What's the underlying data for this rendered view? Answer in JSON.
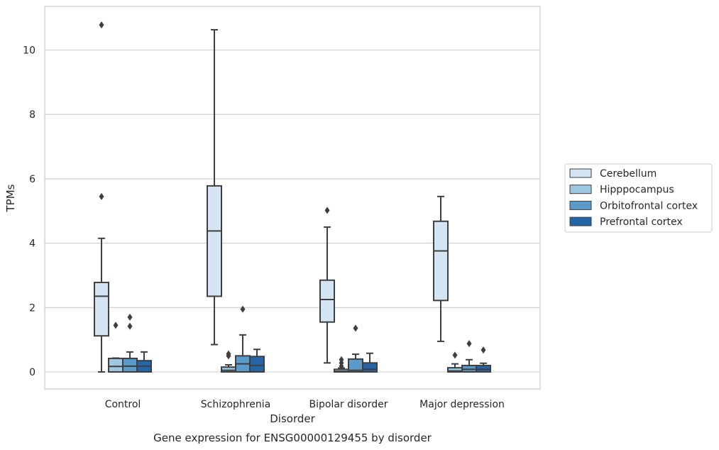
{
  "chart_data": {
    "type": "box",
    "caption": "Gene expression for ENSG00000129455 by disorder",
    "xlabel": "Disorder",
    "ylabel": "TPMs",
    "ylim": [
      -0.5,
      11.35
    ],
    "yticks": [
      0,
      2,
      4,
      6,
      8,
      10
    ],
    "grid": "horizontal",
    "legend_position": "right",
    "categories": [
      "Control",
      "Schizophrenia",
      "Bipolar disorder",
      "Major depression"
    ],
    "series": [
      {
        "name": "Cerebellum",
        "color": "#d6e5f3",
        "boxes": [
          {
            "whislo": 0.0,
            "q1": 1.12,
            "med": 2.35,
            "q3": 2.78,
            "whishi": 4.15,
            "fliers": [
              5.45,
              10.78
            ]
          },
          {
            "whislo": 0.85,
            "q1": 2.35,
            "med": 4.38,
            "q3": 5.78,
            "whishi": 10.63,
            "fliers": []
          },
          {
            "whislo": 0.28,
            "q1": 1.55,
            "med": 2.25,
            "q3": 2.85,
            "whishi": 4.5,
            "fliers": [
              5.02
            ]
          },
          {
            "whislo": 0.95,
            "q1": 2.22,
            "med": 3.76,
            "q3": 4.68,
            "whishi": 5.45,
            "fliers": []
          }
        ]
      },
      {
        "name": "Hipppocampus",
        "color": "#9dc6e0",
        "boxes": [
          {
            "whislo": 0.0,
            "q1": 0.0,
            "med": 0.17,
            "q3": 0.42,
            "whishi": 0.43,
            "fliers": [
              1.45
            ]
          },
          {
            "whislo": 0.0,
            "q1": 0.0,
            "med": 0.05,
            "q3": 0.15,
            "whishi": 0.22,
            "fliers": [
              0.5,
              0.56
            ]
          },
          {
            "whislo": 0.0,
            "q1": 0.0,
            "med": 0.02,
            "q3": 0.08,
            "whishi": 0.12,
            "fliers": [
              0.18,
              0.28,
              0.38
            ]
          },
          {
            "whislo": 0.0,
            "q1": 0.0,
            "med": 0.03,
            "q3": 0.13,
            "whishi": 0.25,
            "fliers": [
              0.52
            ]
          }
        ]
      },
      {
        "name": "Orbitofrontal cortex",
        "color": "#5a9bc9",
        "boxes": [
          {
            "whislo": 0.0,
            "q1": 0.0,
            "med": 0.18,
            "q3": 0.42,
            "whishi": 0.62,
            "fliers": [
              1.42,
              1.7
            ]
          },
          {
            "whislo": 0.0,
            "q1": 0.0,
            "med": 0.25,
            "q3": 0.5,
            "whishi": 1.15,
            "fliers": [
              1.95
            ]
          },
          {
            "whislo": 0.0,
            "q1": 0.0,
            "med": 0.05,
            "q3": 0.4,
            "whishi": 0.55,
            "fliers": [
              1.36
            ]
          },
          {
            "whislo": 0.0,
            "q1": 0.0,
            "med": 0.08,
            "q3": 0.2,
            "whishi": 0.38,
            "fliers": [
              0.88
            ]
          }
        ]
      },
      {
        "name": "Prefrontal cortex",
        "color": "#2365a6",
        "boxes": [
          {
            "whislo": 0.0,
            "q1": 0.0,
            "med": 0.18,
            "q3": 0.35,
            "whishi": 0.62,
            "fliers": []
          },
          {
            "whislo": 0.0,
            "q1": 0.0,
            "med": 0.2,
            "q3": 0.48,
            "whishi": 0.7,
            "fliers": []
          },
          {
            "whislo": 0.0,
            "q1": 0.0,
            "med": 0.08,
            "q3": 0.28,
            "whishi": 0.58,
            "fliers": []
          },
          {
            "whislo": 0.0,
            "q1": 0.0,
            "med": 0.08,
            "q3": 0.2,
            "whishi": 0.27,
            "fliers": [
              0.68
            ]
          }
        ]
      }
    ]
  }
}
